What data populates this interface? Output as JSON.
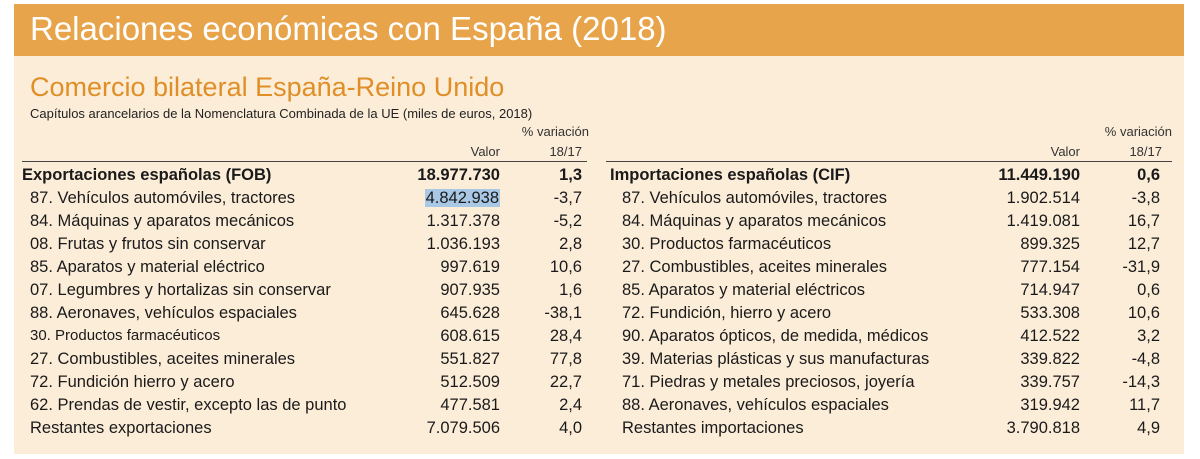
{
  "header": {
    "title": "Relaciones económicas con España (2018)"
  },
  "section": {
    "title": "Comercio bilateral España-Reino Unido",
    "caption": "Capítulos arancelarios de la Nomenclatura Combinada de la UE (miles de euros, 2018)"
  },
  "columns": {
    "valor": "Valor",
    "variacion_1": "% variación",
    "variacion_2": "18/17"
  },
  "exports": {
    "total": {
      "label": "Exportaciones españolas (FOB)",
      "value": "18.977.730",
      "pct": "1,3"
    },
    "rows": [
      {
        "label": "87. Vehículos automóviles, tractores",
        "value": "4.842.938",
        "pct": "-3,7"
      },
      {
        "label": "84. Máquinas y aparatos mecánicos",
        "value": "1.317.378",
        "pct": "-5,2"
      },
      {
        "label": "08. Frutas y frutos sin conservar",
        "value": "1.036.193",
        "pct": "2,8"
      },
      {
        "label": "85. Aparatos y material eléctrico",
        "value": "997.619",
        "pct": "10,6"
      },
      {
        "label": "07. Legumbres y hortalizas sin conservar",
        "value": "907.935",
        "pct": "1,6"
      },
      {
        "label": "88. Aeronaves, vehículos espaciales",
        "value": "645.628",
        "pct": "-38,1"
      },
      {
        "label": "30. Productos farmacéuticos",
        "value": "608.615",
        "pct": "28,4"
      },
      {
        "label": "27. Combustibles, aceites minerales",
        "value": "551.827",
        "pct": "77,8"
      },
      {
        "label": "72. Fundición hierro y acero",
        "value": "512.509",
        "pct": "22,7"
      },
      {
        "label": "62. Prendas de vestir, excepto las de punto",
        "value": "477.581",
        "pct": "2,4"
      },
      {
        "label": "Restantes exportaciones",
        "value": "7.079.506",
        "pct": "4,0"
      }
    ]
  },
  "imports": {
    "total": {
      "label": "Importaciones españolas (CIF)",
      "value": "11.449.190",
      "pct": "0,6"
    },
    "rows": [
      {
        "label": "87. Vehículos automóviles, tractores",
        "value": "1.902.514",
        "pct": "-3,8"
      },
      {
        "label": "84. Máquinas y aparatos mecánicos",
        "value": "1.419.081",
        "pct": "16,7"
      },
      {
        "label": "30. Productos farmacéuticos",
        "value": "899.325",
        "pct": "12,7"
      },
      {
        "label": "27. Combustibles, aceites minerales",
        "value": "777.154",
        "pct": "-31,9"
      },
      {
        "label": "85. Aparatos y material eléctricos",
        "value": "714.947",
        "pct": "0,6"
      },
      {
        "label": "72. Fundición, hierro y acero",
        "value": "533.308",
        "pct": "10,6"
      },
      {
        "label": "90. Aparatos ópticos, de medida, médicos",
        "value": "412.522",
        "pct": "3,2"
      },
      {
        "label": "39. Materias plásticas y sus manufacturas",
        "value": "339.822",
        "pct": "-4,8"
      },
      {
        "label": "71. Piedras y metales preciosos, joyería",
        "value": "339.757",
        "pct": "-14,3"
      },
      {
        "label": "88. Aeronaves, vehículos espaciales",
        "value": "319.942",
        "pct": "11,7"
      },
      {
        "label": "Restantes importaciones",
        "value": "3.790.818",
        "pct": "4,9"
      }
    ]
  },
  "colors": {
    "banner": "#e8a44a",
    "panel": "#fcedd9",
    "subtitle": "#e08e26",
    "highlight": "#a9c8e6"
  }
}
